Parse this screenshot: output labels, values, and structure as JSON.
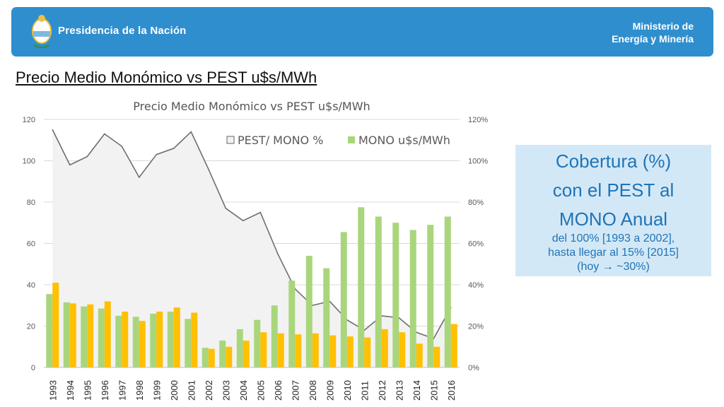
{
  "header": {
    "left_text": "Presidencia de la Nación",
    "right_line1": "Ministerio de",
    "right_line2": "Energía y Minería"
  },
  "slide_title": "Precio Medio Monómico vs PEST u$s/MWh",
  "callout": {
    "line1": "Cobertura (%)",
    "line2": "con el PEST al",
    "line3": "MONO Anual",
    "line4": "del 100% [1993 a 2002],",
    "line5": "hasta llegar al 15% [2015]",
    "line6": "(hoy → ~30%)"
  },
  "colors": {
    "header_bg": "#2f8fce",
    "mono_bar": "#a9d67c",
    "pest_bar": "#ffc000",
    "area_fill": "#f2f2f2",
    "line": "#6f6f6f",
    "callout_bg": "#d3e8f6",
    "callout_text": "#1f74b8"
  },
  "chart_data": {
    "type": "bar",
    "title": "Precio Medio Monómico vs PEST u$s/MWh",
    "categories": [
      "1993",
      "1994",
      "1995",
      "1996",
      "1997",
      "1998",
      "1999",
      "2000",
      "2001",
      "2002",
      "2003",
      "2004",
      "2005",
      "2006",
      "2007",
      "2008",
      "2009",
      "2010",
      "2011",
      "2012",
      "2013",
      "2014",
      "2015",
      "2016"
    ],
    "series": [
      {
        "name": "MONO u$s/MWh",
        "kind": "bar",
        "axis": "left",
        "values": [
          35.5,
          31.5,
          29.5,
          28.5,
          25.0,
          24.5,
          26.0,
          27.0,
          23.5,
          9.5,
          13.0,
          18.5,
          23.0,
          30.0,
          42.0,
          54.0,
          48.0,
          65.5,
          77.5,
          73.0,
          70.0,
          66.5,
          69.0,
          73.0
        ]
      },
      {
        "name": "",
        "kind": "bar",
        "axis": "left",
        "values": [
          41.0,
          31.0,
          30.5,
          32.0,
          27.0,
          22.5,
          27.0,
          29.0,
          26.5,
          9.0,
          10.0,
          13.0,
          17.0,
          16.5,
          16.0,
          16.5,
          15.5,
          15.0,
          14.5,
          18.5,
          17.0,
          11.5,
          10.0,
          21.0
        ]
      },
      {
        "name": "PEST/ MONO %",
        "kind": "area",
        "axis": "right",
        "values": [
          1.15,
          0.98,
          1.02,
          1.13,
          1.07,
          0.92,
          1.03,
          1.06,
          1.14,
          0.96,
          0.77,
          0.71,
          0.75,
          0.55,
          0.38,
          0.3,
          0.32,
          0.23,
          0.18,
          0.25,
          0.24,
          0.17,
          0.14,
          0.29
        ]
      }
    ],
    "ylim": [
      0,
      120
    ],
    "y_ticks": [
      "0",
      "20",
      "40",
      "60",
      "80",
      "100",
      "120"
    ],
    "y2lim": [
      0,
      1.2
    ],
    "y2_ticks": [
      "0%",
      "20%",
      "40%",
      "60%",
      "80%",
      "100%",
      "120%"
    ],
    "legend": [
      {
        "label": "PEST/ MONO %",
        "marker": "square-outline"
      },
      {
        "label": "MONO u$s/MWh",
        "marker": "green-square"
      }
    ],
    "legend_position": "top-right",
    "grid": true
  }
}
